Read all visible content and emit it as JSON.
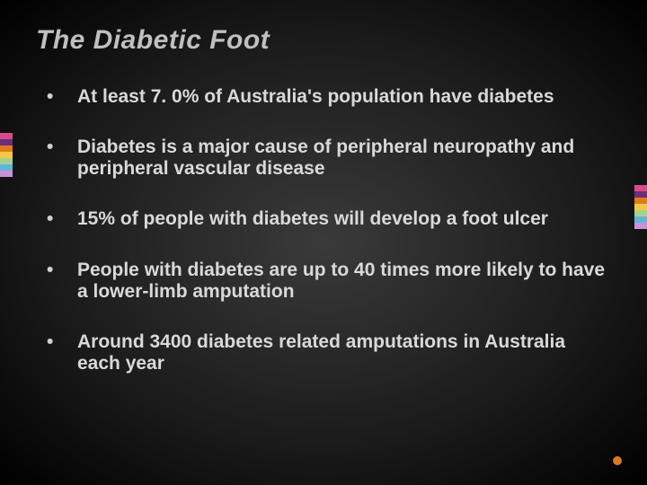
{
  "slide": {
    "title": "The Diabetic Foot",
    "title_fontsize": 30,
    "body_fontsize": 21,
    "background_gradient": {
      "inner": "#3a3a3a",
      "mid": "#1a1a1a",
      "outer": "#000000"
    },
    "text_color": "#d9d9d9",
    "title_color": "#bfbfbf",
    "bullets": [
      "At least 7. 0% of Australia's population have diabetes",
      "Diabetes is a major cause of peripheral neuropathy and peripheral vascular disease",
      "15% of people with diabetes will develop a foot ulcer",
      "People with diabetes are up to 40 times more likely to have a lower-limb amputation",
      "Around 3400 diabetes related amputations in Australia each year"
    ],
    "bullet_char": "•"
  },
  "decor": {
    "stripe_colors": [
      "#d94a8c",
      "#6a2e7a",
      "#e37a1a",
      "#f2c84b",
      "#a8d08d",
      "#5fb6d9",
      "#c792d6"
    ],
    "accent_dot_color": "#d47a2a"
  }
}
